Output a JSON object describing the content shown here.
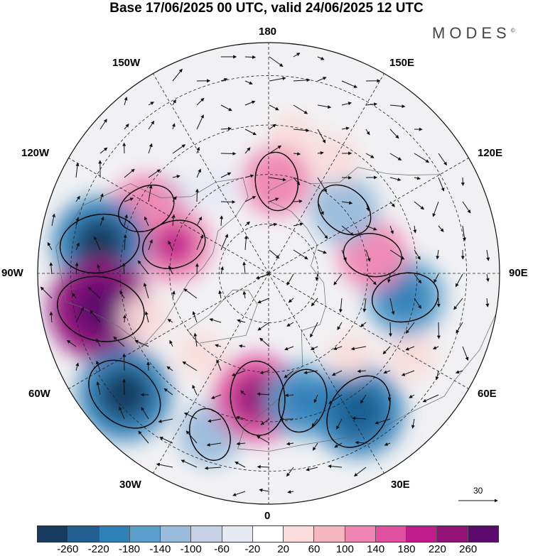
{
  "title": "Base 17/06/2025 00 UTC, valid 24/06/2025 12 UTC",
  "brand": "MODES",
  "brand_mark": "©",
  "map_labels": {
    "top": "180",
    "bottom": "0",
    "left": "90W",
    "right": "90E",
    "upper_left": "150W",
    "upper_right": "150E",
    "mid_upper_left": "120W",
    "mid_upper_right": "120E",
    "mid_lower_left": "60W",
    "mid_lower_right": "60E",
    "lower_left": "30W",
    "lower_right": "30E"
  },
  "reference_vector_label": "30",
  "legend": {
    "colors": [
      "#163a5e",
      "#1f5e8e",
      "#2f7fb8",
      "#5a9fcc",
      "#98bbdb",
      "#c6d1e6",
      "#e6e8f3",
      "#ffffff",
      "#fadcdc",
      "#f5b6c4",
      "#ef86b2",
      "#e150a0",
      "#c01c8c",
      "#941178",
      "#5c0a6e"
    ],
    "ticks": [
      "-260",
      "-220",
      "-180",
      "-140",
      "-100",
      "-60",
      "-20",
      "20",
      "60",
      "100",
      "140",
      "180",
      "220",
      "260"
    ]
  },
  "anomalies": [
    {
      "lon": -150,
      "lat": 60,
      "value": -40
    },
    {
      "lon": -125,
      "lat": 52,
      "value": -60
    },
    {
      "lon": -118,
      "lat": 48,
      "value": 120
    },
    {
      "lon": -107,
      "lat": 60,
      "value": 140
    },
    {
      "lon": -100,
      "lat": 38,
      "value": -200
    },
    {
      "lon": -78,
      "lat": 38,
      "value": 230
    },
    {
      "lon": -70,
      "lat": 50,
      "value": 60
    },
    {
      "lon": -50,
      "lat": 33,
      "value": -200
    },
    {
      "lon": -40,
      "lat": 58,
      "value": 50
    },
    {
      "lon": -20,
      "lat": 38,
      "value": -100
    },
    {
      "lon": -5,
      "lat": 52,
      "value": 180
    },
    {
      "lon": 15,
      "lat": 50,
      "value": -140
    },
    {
      "lon": 33,
      "lat": 40,
      "value": -190
    },
    {
      "lon": 45,
      "lat": 55,
      "value": 40
    },
    {
      "lon": 60,
      "lat": 40,
      "value": 60
    },
    {
      "lon": 80,
      "lat": 48,
      "value": -150
    },
    {
      "lon": 100,
      "lat": 58,
      "value": 120
    },
    {
      "lon": 130,
      "lat": 60,
      "value": -120
    },
    {
      "lon": 150,
      "lat": 50,
      "value": 60
    },
    {
      "lon": 170,
      "lat": 48,
      "value": 50
    },
    {
      "lon": 175,
      "lat": 62,
      "value": 120
    }
  ]
}
